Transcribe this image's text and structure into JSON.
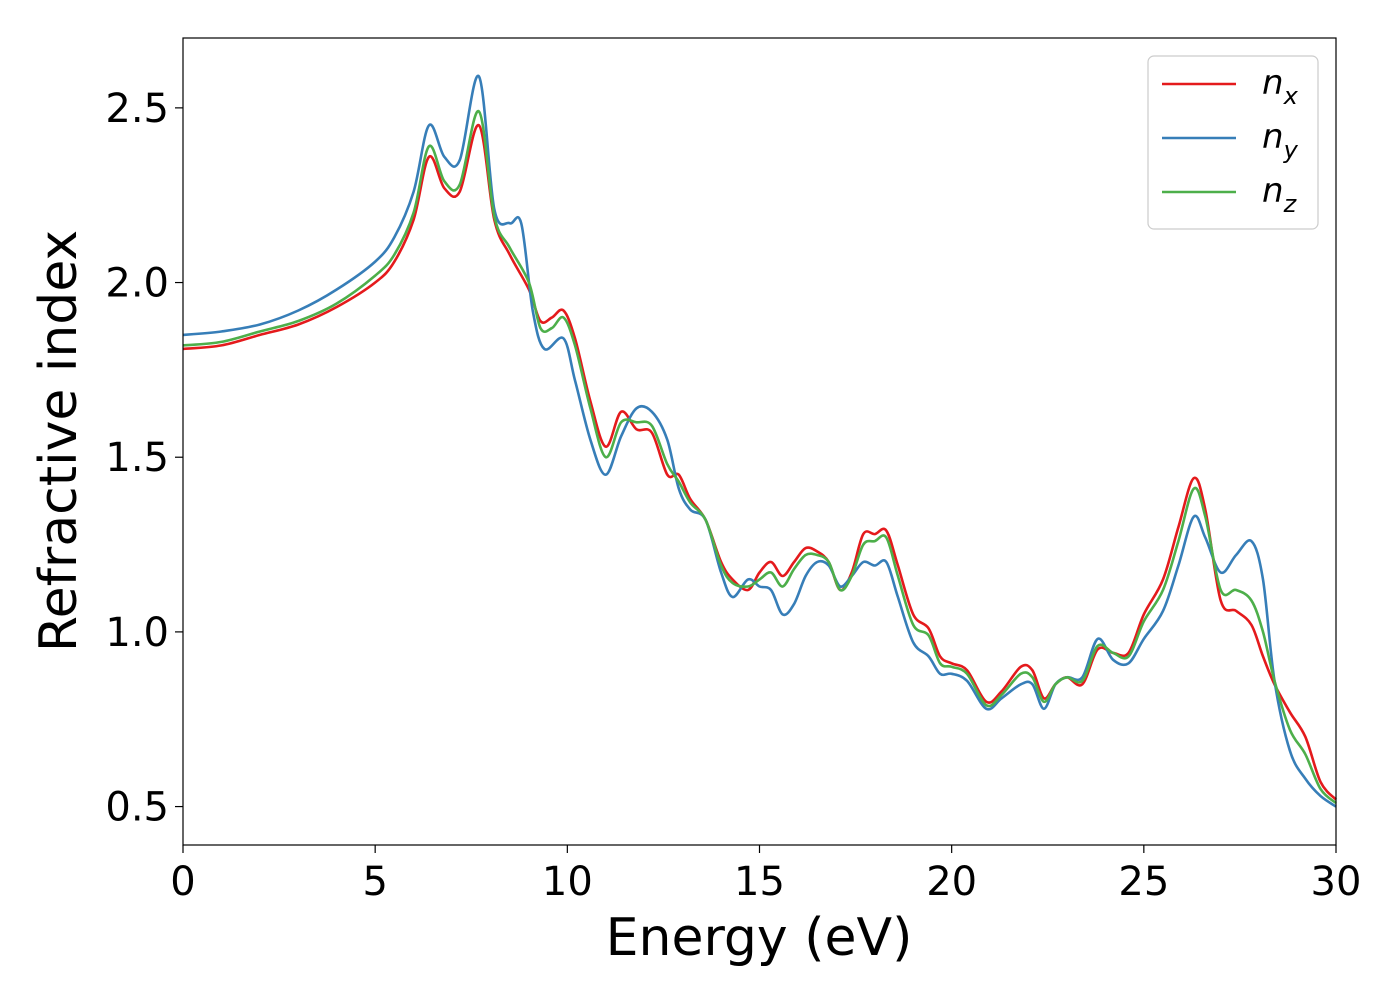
{
  "chart_data": {
    "type": "line",
    "title": "",
    "xlabel": "Energy (eV)",
    "ylabel": "Refractive index",
    "xlim": [
      0,
      30
    ],
    "ylim": [
      0.39,
      2.7
    ],
    "xticks": [
      0,
      5,
      10,
      15,
      20,
      25,
      30
    ],
    "xtick_labels": [
      "0",
      "5",
      "10",
      "15",
      "20",
      "25",
      "30"
    ],
    "yticks": [
      0.5,
      1.0,
      1.5,
      2.0,
      2.5
    ],
    "ytick_labels": [
      "0.5",
      "1.0",
      "1.5",
      "2.0",
      "2.5"
    ],
    "grid": false,
    "legend_position": "top-right",
    "series": [
      {
        "name": "n",
        "subscript": "x",
        "color": "#e41a1c",
        "x": [
          0,
          1,
          2,
          3,
          4,
          5,
          5.5,
          6,
          6.4,
          6.8,
          7.2,
          7.7,
          8.1,
          8.5,
          9.0,
          9.3,
          9.6,
          9.9,
          10.2,
          10.6,
          11.0,
          11.4,
          11.8,
          12.2,
          12.6,
          12.9,
          13.2,
          13.6,
          14.0,
          14.3,
          14.7,
          15.0,
          15.3,
          15.6,
          15.9,
          16.2,
          16.5,
          16.8,
          17.1,
          17.4,
          17.7,
          18.0,
          18.3,
          18.6,
          19.0,
          19.4,
          19.7,
          20.0,
          20.4,
          20.9,
          21.3,
          21.8,
          22.1,
          22.4,
          22.7,
          23.0,
          23.4,
          23.8,
          24.2,
          24.6,
          25.0,
          25.5,
          25.9,
          26.3,
          26.6,
          27.0,
          27.4,
          27.8,
          28.1,
          28.4,
          28.8,
          29.2,
          29.6,
          30.0
        ],
        "values": [
          1.81,
          1.82,
          1.85,
          1.88,
          1.93,
          2.0,
          2.06,
          2.18,
          2.36,
          2.27,
          2.26,
          2.45,
          2.18,
          2.08,
          1.98,
          1.89,
          1.9,
          1.92,
          1.84,
          1.66,
          1.53,
          1.63,
          1.58,
          1.57,
          1.45,
          1.45,
          1.38,
          1.32,
          1.2,
          1.15,
          1.12,
          1.17,
          1.2,
          1.16,
          1.2,
          1.24,
          1.23,
          1.2,
          1.12,
          1.17,
          1.28,
          1.28,
          1.29,
          1.19,
          1.05,
          1.01,
          0.93,
          0.91,
          0.89,
          0.8,
          0.83,
          0.9,
          0.89,
          0.81,
          0.85,
          0.87,
          0.85,
          0.95,
          0.94,
          0.94,
          1.05,
          1.15,
          1.3,
          1.44,
          1.35,
          1.09,
          1.06,
          1.02,
          0.93,
          0.85,
          0.77,
          0.7,
          0.57,
          0.52
        ]
      },
      {
        "name": "n",
        "subscript": "y",
        "color": "#377eb8",
        "x": [
          0,
          1,
          2,
          3,
          4,
          5,
          5.5,
          6,
          6.4,
          6.8,
          7.2,
          7.7,
          8.1,
          8.5,
          8.8,
          9.1,
          9.4,
          9.9,
          10.2,
          10.6,
          11.0,
          11.4,
          11.8,
          12.2,
          12.6,
          12.9,
          13.2,
          13.6,
          14.0,
          14.3,
          14.7,
          15.0,
          15.3,
          15.6,
          15.9,
          16.2,
          16.5,
          16.8,
          17.1,
          17.4,
          17.7,
          18.0,
          18.3,
          18.6,
          19.0,
          19.4,
          19.7,
          20.0,
          20.4,
          20.9,
          21.3,
          21.8,
          22.1,
          22.4,
          22.7,
          23.0,
          23.4,
          23.8,
          24.2,
          24.6,
          25.0,
          25.5,
          25.9,
          26.3,
          26.6,
          27.0,
          27.4,
          27.8,
          28.1,
          28.4,
          28.8,
          29.2,
          29.6,
          30.0
        ],
        "values": [
          1.85,
          1.86,
          1.88,
          1.92,
          1.98,
          2.06,
          2.13,
          2.26,
          2.45,
          2.36,
          2.35,
          2.59,
          2.21,
          2.17,
          2.17,
          1.92,
          1.81,
          1.84,
          1.72,
          1.55,
          1.45,
          1.56,
          1.64,
          1.63,
          1.55,
          1.41,
          1.35,
          1.32,
          1.17,
          1.1,
          1.15,
          1.13,
          1.12,
          1.05,
          1.08,
          1.16,
          1.2,
          1.19,
          1.13,
          1.16,
          1.2,
          1.19,
          1.2,
          1.1,
          0.97,
          0.93,
          0.88,
          0.88,
          0.86,
          0.78,
          0.81,
          0.85,
          0.85,
          0.78,
          0.85,
          0.87,
          0.87,
          0.98,
          0.92,
          0.91,
          0.98,
          1.06,
          1.19,
          1.33,
          1.27,
          1.17,
          1.22,
          1.26,
          1.15,
          0.86,
          0.66,
          0.58,
          0.53,
          0.5
        ]
      },
      {
        "name": "n",
        "subscript": "z",
        "color": "#4daf4a",
        "x": [
          0,
          1,
          2,
          3,
          4,
          5,
          5.5,
          6,
          6.4,
          6.8,
          7.2,
          7.7,
          8.1,
          8.5,
          9.0,
          9.3,
          9.6,
          9.9,
          10.2,
          10.6,
          11.0,
          11.4,
          11.8,
          12.2,
          12.6,
          12.9,
          13.2,
          13.6,
          14.0,
          14.3,
          14.7,
          15.0,
          15.3,
          15.6,
          15.9,
          16.2,
          16.5,
          16.8,
          17.1,
          17.4,
          17.7,
          18.0,
          18.3,
          18.6,
          19.0,
          19.4,
          19.7,
          20.0,
          20.4,
          20.9,
          21.3,
          21.8,
          22.1,
          22.4,
          22.7,
          23.0,
          23.4,
          23.8,
          24.2,
          24.6,
          25.0,
          25.5,
          25.9,
          26.3,
          26.6,
          27.0,
          27.4,
          27.8,
          28.1,
          28.4,
          28.8,
          29.2,
          29.6,
          30.0
        ],
        "values": [
          1.82,
          1.83,
          1.86,
          1.89,
          1.94,
          2.02,
          2.08,
          2.2,
          2.39,
          2.29,
          2.28,
          2.49,
          2.19,
          2.1,
          2.0,
          1.87,
          1.87,
          1.9,
          1.82,
          1.64,
          1.5,
          1.6,
          1.6,
          1.59,
          1.48,
          1.43,
          1.37,
          1.32,
          1.19,
          1.14,
          1.13,
          1.15,
          1.17,
          1.13,
          1.18,
          1.22,
          1.22,
          1.2,
          1.12,
          1.16,
          1.25,
          1.26,
          1.27,
          1.16,
          1.02,
          0.99,
          0.91,
          0.9,
          0.88,
          0.79,
          0.82,
          0.88,
          0.87,
          0.8,
          0.85,
          0.87,
          0.86,
          0.96,
          0.94,
          0.93,
          1.03,
          1.12,
          1.26,
          1.41,
          1.33,
          1.12,
          1.12,
          1.09,
          1.0,
          0.86,
          0.72,
          0.65,
          0.55,
          0.51
        ]
      }
    ]
  }
}
